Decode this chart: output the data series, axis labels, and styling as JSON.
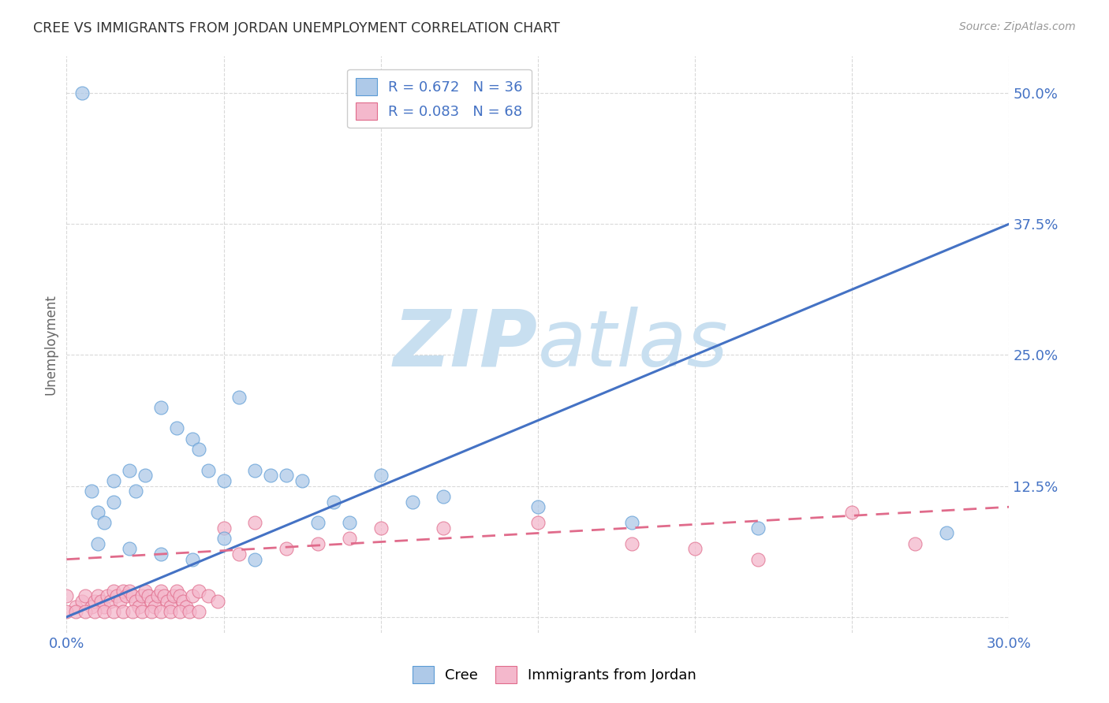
{
  "title": "CREE VS IMMIGRANTS FROM JORDAN UNEMPLOYMENT CORRELATION CHART",
  "source": "Source: ZipAtlas.com",
  "ylabel": "Unemployment",
  "x_min": 0.0,
  "x_max": 0.3,
  "y_min": -0.015,
  "y_max": 0.535,
  "x_ticks": [
    0.0,
    0.05,
    0.1,
    0.15,
    0.2,
    0.25,
    0.3
  ],
  "x_tick_labels": [
    "0.0%",
    "",
    "",
    "",
    "",
    "",
    "30.0%"
  ],
  "y_ticks": [
    0.0,
    0.125,
    0.25,
    0.375,
    0.5
  ],
  "y_tick_labels": [
    "",
    "12.5%",
    "25.0%",
    "37.5%",
    "50.0%"
  ],
  "grid_color": "#d0d0d0",
  "background_color": "#ffffff",
  "watermark_zip_color": "#c8dff0",
  "watermark_atlas_color": "#c8dff0",
  "cree_color": "#aec9e8",
  "cree_edge_color": "#5b9bd5",
  "cree_line_color": "#4472C4",
  "jordan_color": "#f4b8cc",
  "jordan_edge_color": "#e06b8b",
  "jordan_line_color": "#e06b8b",
  "cree_R": 0.672,
  "cree_N": 36,
  "jordan_R": 0.083,
  "jordan_N": 68,
  "legend_label_cree": "Cree",
  "legend_label_jordan": "Immigrants from Jordan",
  "cree_line_x0": 0.0,
  "cree_line_y0": 0.0,
  "cree_line_x1": 0.3,
  "cree_line_y1": 0.375,
  "jordan_line_x0": 0.0,
  "jordan_line_y0": 0.055,
  "jordan_line_x1": 0.3,
  "jordan_line_y1": 0.105,
  "cree_scatter_x": [
    0.005,
    0.008,
    0.01,
    0.012,
    0.015,
    0.015,
    0.02,
    0.022,
    0.025,
    0.03,
    0.035,
    0.04,
    0.042,
    0.045,
    0.05,
    0.055,
    0.06,
    0.065,
    0.07,
    0.075,
    0.08,
    0.085,
    0.09,
    0.1,
    0.11,
    0.12,
    0.15,
    0.18,
    0.22,
    0.28,
    0.01,
    0.02,
    0.03,
    0.04,
    0.05,
    0.06
  ],
  "cree_scatter_y": [
    0.5,
    0.12,
    0.1,
    0.09,
    0.13,
    0.11,
    0.14,
    0.12,
    0.135,
    0.2,
    0.18,
    0.17,
    0.16,
    0.14,
    0.13,
    0.21,
    0.14,
    0.135,
    0.135,
    0.13,
    0.09,
    0.11,
    0.09,
    0.135,
    0.11,
    0.115,
    0.105,
    0.09,
    0.085,
    0.08,
    0.07,
    0.065,
    0.06,
    0.055,
    0.075,
    0.055
  ],
  "jordan_scatter_x": [
    0.0,
    0.003,
    0.005,
    0.006,
    0.008,
    0.009,
    0.01,
    0.011,
    0.012,
    0.013,
    0.014,
    0.015,
    0.016,
    0.017,
    0.018,
    0.019,
    0.02,
    0.021,
    0.022,
    0.023,
    0.024,
    0.025,
    0.026,
    0.027,
    0.028,
    0.029,
    0.03,
    0.031,
    0.032,
    0.033,
    0.034,
    0.035,
    0.036,
    0.037,
    0.038,
    0.04,
    0.042,
    0.045,
    0.048,
    0.05,
    0.055,
    0.06,
    0.07,
    0.08,
    0.09,
    0.1,
    0.12,
    0.15,
    0.18,
    0.2,
    0.22,
    0.25,
    0.27,
    0.0,
    0.003,
    0.006,
    0.009,
    0.012,
    0.015,
    0.018,
    0.021,
    0.024,
    0.027,
    0.03,
    0.033,
    0.036,
    0.039,
    0.042
  ],
  "jordan_scatter_y": [
    0.02,
    0.01,
    0.015,
    0.02,
    0.01,
    0.015,
    0.02,
    0.015,
    0.01,
    0.02,
    0.015,
    0.025,
    0.02,
    0.015,
    0.025,
    0.02,
    0.025,
    0.02,
    0.015,
    0.01,
    0.02,
    0.025,
    0.02,
    0.015,
    0.01,
    0.02,
    0.025,
    0.02,
    0.015,
    0.01,
    0.02,
    0.025,
    0.02,
    0.015,
    0.01,
    0.02,
    0.025,
    0.02,
    0.015,
    0.085,
    0.06,
    0.09,
    0.065,
    0.07,
    0.075,
    0.085,
    0.085,
    0.09,
    0.07,
    0.065,
    0.055,
    0.1,
    0.07,
    0.005,
    0.005,
    0.005,
    0.005,
    0.005,
    0.005,
    0.005,
    0.005,
    0.005,
    0.005,
    0.005,
    0.005,
    0.005,
    0.005,
    0.005
  ]
}
